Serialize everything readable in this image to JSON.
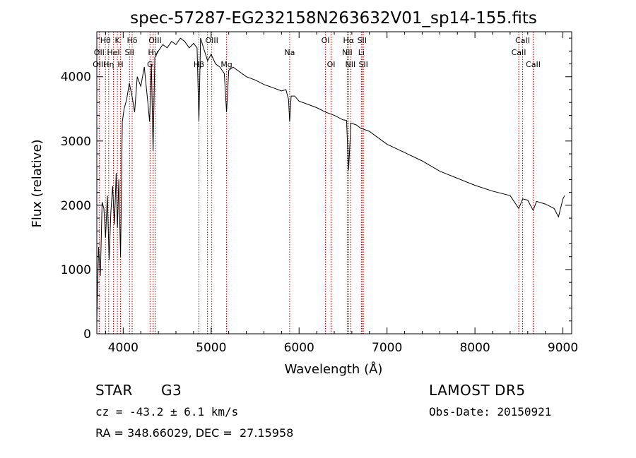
{
  "chart_data": {
    "type": "line",
    "title": "spec-57287-EG232158N263632V01_sp14-155.fits",
    "xlabel": "Wavelength (Å)",
    "ylabel": "Flux (relative)",
    "xlim": [
      3700,
      9100
    ],
    "ylim": [
      0,
      4700
    ],
    "x_ticks": [
      4000,
      5000,
      6000,
      7000,
      8000,
      9000
    ],
    "y_ticks": [
      0,
      1000,
      2000,
      3000,
      4000
    ],
    "grid": false,
    "legend": "none",
    "series": [
      {
        "x": [
          3700,
          3720,
          3740,
          3760,
          3780,
          3800,
          3820,
          3840,
          3860,
          3880,
          3900,
          3920,
          3935,
          3950,
          3970,
          3990,
          4010,
          4040,
          4070,
          4100,
          4130,
          4160,
          4200,
          4240,
          4280,
          4300,
          4320,
          4340,
          4360,
          4400,
          4450,
          4500,
          4550,
          4600,
          4650,
          4700,
          4750,
          4800,
          4840,
          4861,
          4880,
          4920,
          4960,
          5000,
          5050,
          5100,
          5150,
          5175,
          5200,
          5250,
          5300,
          5400,
          5500,
          5600,
          5700,
          5800,
          5850,
          5880,
          5893,
          5910,
          5950,
          6000,
          6100,
          6200,
          6300,
          6400,
          6500,
          6540,
          6563,
          6590,
          6650,
          6700,
          6800,
          6900,
          7000,
          7200,
          7400,
          7600,
          7800,
          8000,
          8200,
          8400,
          8498,
          8542,
          8600,
          8662,
          8700,
          8800,
          8900,
          8950,
          9000,
          9020
        ],
        "y": [
          200,
          1350,
          900,
          2050,
          1950,
          1500,
          2150,
          1150,
          1900,
          2300,
          1700,
          2500,
          1650,
          2400,
          1200,
          3300,
          3500,
          3650,
          3900,
          3700,
          3450,
          4000,
          3850,
          4150,
          3600,
          3300,
          4200,
          2850,
          4300,
          4400,
          4500,
          4450,
          4550,
          4500,
          4600,
          4550,
          4450,
          4520,
          4450,
          3300,
          4600,
          4420,
          4250,
          4350,
          4200,
          4150,
          4050,
          3450,
          4100,
          4150,
          4100,
          4000,
          3950,
          3880,
          3830,
          3780,
          3800,
          3650,
          3300,
          3700,
          3700,
          3620,
          3570,
          3520,
          3450,
          3400,
          3330,
          3320,
          2550,
          3280,
          3250,
          3200,
          3150,
          3050,
          2950,
          2820,
          2690,
          2530,
          2420,
          2310,
          2220,
          2150,
          1950,
          2100,
          2080,
          1920,
          2060,
          2020,
          1950,
          1820,
          2100,
          2150
        ]
      }
    ],
    "line_labels": [
      {
        "text": "Hθ",
        "x": 3798,
        "row": 1
      },
      {
        "text": "K",
        "x": 3934,
        "row": 1
      },
      {
        "text": "Hδ",
        "x": 4102,
        "row": 1
      },
      {
        "text": "OII",
        "x": 3727,
        "row": 2
      },
      {
        "text": "HeI",
        "x": 3889,
        "row": 2
      },
      {
        "text": "SII",
        "x": 4072,
        "row": 2
      },
      {
        "text": "OIII",
        "x": 3727,
        "row": 3
      },
      {
        "text": "Hη",
        "x": 3835,
        "row": 3
      },
      {
        "text": "H",
        "x": 3969,
        "row": 3
      },
      {
        "text": "OIII",
        "x": 4363,
        "row": 1
      },
      {
        "text": "Hγ",
        "x": 4341,
        "row": 2
      },
      {
        "text": "G",
        "x": 4305,
        "row": 3
      },
      {
        "text": "OIII",
        "x": 5007,
        "row": 1
      },
      {
        "text": "Hβ",
        "x": 4861,
        "row": 3
      },
      {
        "text": "Mg",
        "x": 5175,
        "row": 3
      },
      {
        "text": "Na",
        "x": 5893,
        "row": 2
      },
      {
        "text": "OI",
        "x": 6300,
        "row": 1
      },
      {
        "text": "OI",
        "x": 6364,
        "row": 3
      },
      {
        "text": "Hα",
        "x": 6563,
        "row": 1
      },
      {
        "text": "SII",
        "x": 6716,
        "row": 1
      },
      {
        "text": "NII",
        "x": 6548,
        "row": 2
      },
      {
        "text": "Li",
        "x": 6708,
        "row": 2
      },
      {
        "text": "NII",
        "x": 6584,
        "row": 3
      },
      {
        "text": "SII",
        "x": 6731,
        "row": 3
      },
      {
        "text": "CaII",
        "x": 8542,
        "row": 1
      },
      {
        "text": "CaII",
        "x": 8498,
        "row": 2
      },
      {
        "text": "CaII",
        "x": 8662,
        "row": 3
      }
    ],
    "line_markers": [
      3727,
      3798,
      3835,
      3889,
      3934,
      3969,
      4072,
      4102,
      4305,
      4341,
      4363,
      4861,
      4959,
      5007,
      5175,
      5893,
      6300,
      6364,
      6548,
      6563,
      6584,
      6708,
      6716,
      6731,
      8498,
      8542,
      8662
    ]
  },
  "info": {
    "object_class": "STAR",
    "subclass": "G3",
    "survey": "LAMOST DR5",
    "redshift_line": "cz = -43.2 ± 6.1 km/s",
    "obs_date": "Obs-Date: 20150921",
    "coords": "RA = 348.66029, DEC =  27.15958"
  }
}
